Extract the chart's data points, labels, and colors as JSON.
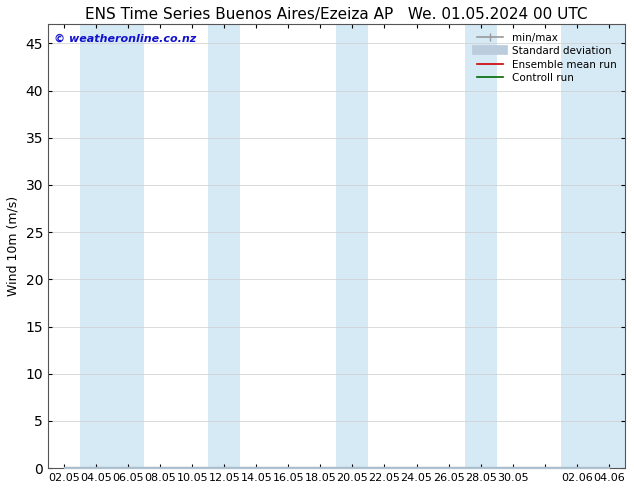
{
  "title_left": "ENS Time Series Buenos Aires/Ezeiza AP",
  "title_right": "We. 01.05.2024 00 UTC",
  "ylabel": "Wind 10m (m/s)",
  "copyright": "© weatheronline.co.nz",
  "yticks": [
    0,
    5,
    10,
    15,
    20,
    25,
    30,
    35,
    40,
    45
  ],
  "ylim": [
    0,
    47
  ],
  "background_color": "#ffffff",
  "band_color": "#d6eaf5",
  "legend_items": [
    {
      "label": "min/max",
      "color": "#999999",
      "lw": 1.2
    },
    {
      "label": "Standard deviation",
      "color": "#ccddee",
      "lw": 6
    },
    {
      "label": "Ensemble mean run",
      "color": "#cc0000",
      "lw": 1.2
    },
    {
      "label": "Controll run",
      "color": "#006600",
      "lw": 1.2
    }
  ],
  "x_tick_labels": [
    "02.05",
    "04.05",
    "06.05",
    "08.05",
    "10.05",
    "12.05",
    "14.05",
    "16.05",
    "18.05",
    "20.05",
    "22.05",
    "24.05",
    "26.05",
    "28.05",
    "30.05",
    "",
    "02.06",
    "04.06"
  ],
  "title_fontsize": 11,
  "axis_fontsize": 9,
  "tick_fontsize": 8,
  "copyright_fontsize": 8,
  "copyright_color": "#1111cc"
}
